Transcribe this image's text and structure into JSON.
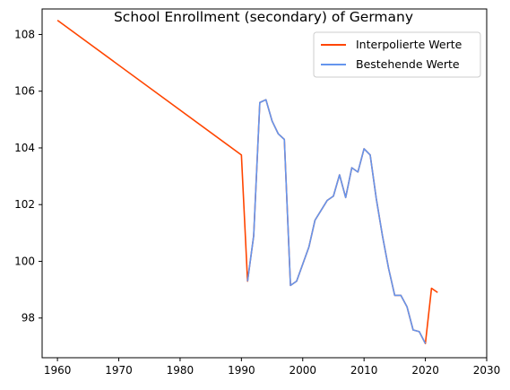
{
  "chart_data": {
    "type": "line",
    "title": "School Enrollment (secondary) of Germany",
    "xlabel": "",
    "ylabel": "",
    "xlim": [
      1957.5,
      2030
    ],
    "ylim": [
      96.6,
      108.9
    ],
    "xticks": [
      1960,
      1970,
      1980,
      1990,
      2000,
      2010,
      2020,
      2030
    ],
    "yticks": [
      98,
      100,
      102,
      104,
      106,
      108
    ],
    "grid": false,
    "legend_position": "top-right",
    "series": [
      {
        "name": "Interpolierte Werte",
        "color": "#ff4500",
        "x": [
          1960,
          1990,
          1991,
          1992,
          1993,
          1994,
          1995,
          1996,
          1997,
          1998,
          1999,
          2000,
          2001,
          2002,
          2003,
          2004,
          2005,
          2006,
          2007,
          2008,
          2009,
          2010,
          2011,
          2012,
          2013,
          2014,
          2015,
          2016,
          2017,
          2018,
          2019,
          2020,
          2021,
          2022
        ],
        "y": [
          108.5,
          103.75,
          99.3,
          100.9,
          105.6,
          105.7,
          104.95,
          104.5,
          104.3,
          99.15,
          99.3,
          99.9,
          100.5,
          101.45,
          101.8,
          102.15,
          102.3,
          103.05,
          102.25,
          103.3,
          103.15,
          103.97,
          103.75,
          102.2,
          100.9,
          99.75,
          98.8,
          98.8,
          98.4,
          97.58,
          97.52,
          97.1,
          99.05,
          98.9
        ]
      },
      {
        "name": "Bestehende Werte",
        "color": "#6495ed",
        "x": [
          1991,
          1992,
          1993,
          1994,
          1995,
          1996,
          1997,
          1998,
          1999,
          2000,
          2001,
          2002,
          2003,
          2004,
          2005,
          2006,
          2007,
          2008,
          2009,
          2010,
          2011,
          2012,
          2013,
          2014,
          2015,
          2016,
          2017,
          2018,
          2019,
          2020
        ],
        "y": [
          99.3,
          100.9,
          105.6,
          105.7,
          104.95,
          104.5,
          104.3,
          99.15,
          99.3,
          99.9,
          100.5,
          101.45,
          101.8,
          102.15,
          102.3,
          103.05,
          102.25,
          103.3,
          103.15,
          103.97,
          103.75,
          102.2,
          100.9,
          99.75,
          98.8,
          98.8,
          98.4,
          97.58,
          97.52,
          97.1
        ]
      }
    ]
  }
}
